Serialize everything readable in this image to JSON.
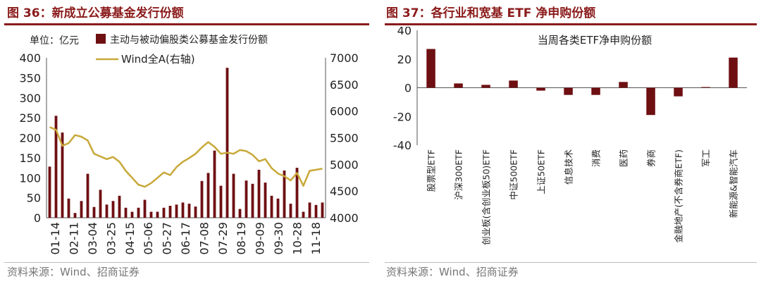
{
  "figures": [
    {
      "title": "图 36：新成立公募基金发行份额",
      "source": "资料来源：Wind、招商证券"
    },
    {
      "title": "图 37：各行业和宽基 ETF 净申购份额",
      "source": "资料来源：Wind、招商证券"
    }
  ],
  "colors": {
    "title_red": "#8b1b1b",
    "bar": "#6e0f12",
    "line": "#c8a838",
    "text": "#222222"
  },
  "chart_data": [
    {
      "type": "bar",
      "title": "",
      "unit_label": "单位：亿元",
      "xlabel": "",
      "ylabel": "",
      "ylim": [
        0,
        400
      ],
      "yticks": [
        0,
        50,
        100,
        150,
        200,
        250,
        300,
        350,
        400
      ],
      "y2lim": [
        4000,
        7000
      ],
      "y2ticks": [
        4000,
        4500,
        5000,
        5500,
        6000,
        6500,
        7000
      ],
      "legend_position": "top",
      "xtick_labels": [
        "01-14",
        "02-11",
        "03-04",
        "03-25",
        "04-15",
        "05-06",
        "05-27",
        "06-17",
        "07-08",
        "07-29",
        "08-19",
        "09-09",
        "09-30",
        "10-28",
        "11-18"
      ],
      "series": [
        {
          "name": "主动与被动偏股类公募基金发行份额",
          "type": "bar",
          "axis": "left",
          "values": [
            128,
            255,
            213,
            48,
            12,
            42,
            110,
            27,
            70,
            33,
            42,
            55,
            25,
            15,
            25,
            45,
            15,
            15,
            25,
            30,
            33,
            38,
            35,
            28,
            92,
            112,
            168,
            80,
            375,
            110,
            22,
            93,
            85,
            120,
            88,
            55,
            48,
            118,
            35,
            125,
            15,
            38,
            32,
            38
          ]
        },
        {
          "name": "Wind全A(右轴)",
          "type": "line",
          "axis": "right",
          "values": [
            5700,
            5650,
            5350,
            5400,
            5550,
            5520,
            5450,
            5200,
            5150,
            5100,
            5140,
            5050,
            4880,
            4750,
            4620,
            4580,
            4650,
            4750,
            4850,
            4800,
            4950,
            5050,
            5120,
            5200,
            5320,
            5420,
            5330,
            5200,
            5220,
            5200,
            5270,
            5250,
            5180,
            5060,
            5100,
            4930,
            4830,
            4780,
            4700,
            4840,
            4600,
            4880,
            4900,
            4920
          ]
        }
      ]
    },
    {
      "type": "bar",
      "title": "当周各类ETF净申购份额",
      "xlabel": "",
      "ylabel": "",
      "ylim": [
        -40,
        40
      ],
      "yticks": [
        -40,
        -20,
        0,
        20,
        40
      ],
      "categories": [
        "股票型ETF",
        "沪深300ETF",
        "创业板(含创业板50)ETF",
        "中证500ETF",
        "上证50ETF",
        "信息技术",
        "消费",
        "医药",
        "券商",
        "金融地产(不含券商ETF)",
        "军工",
        "新能源&智能汽车"
      ],
      "values": [
        27,
        3,
        2,
        5,
        -2,
        -5,
        -5,
        4,
        -19,
        -6,
        0.5,
        21
      ]
    }
  ]
}
